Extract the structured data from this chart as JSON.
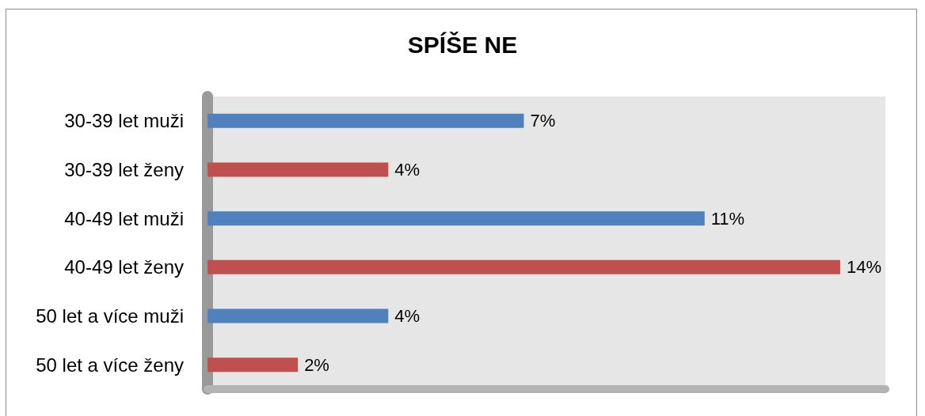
{
  "chart_data": {
    "type": "bar",
    "orientation": "horizontal",
    "title": "SPÍŠE NE",
    "categories": [
      "30-39 let muži",
      "30-39 let ženy",
      "40-49 let muži",
      "40-49 let ženy",
      "50 let a více muži",
      "50 let a více ženy"
    ],
    "values": [
      7,
      4,
      11,
      14,
      4,
      2
    ],
    "colors": [
      "#4f81bd",
      "#c0504d",
      "#4f81bd",
      "#c0504d",
      "#4f81bd",
      "#c0504d"
    ],
    "value_labels": [
      "7%",
      "4%",
      "11%",
      "14%",
      "4%",
      "2%"
    ],
    "tick_labels": "y"
  }
}
